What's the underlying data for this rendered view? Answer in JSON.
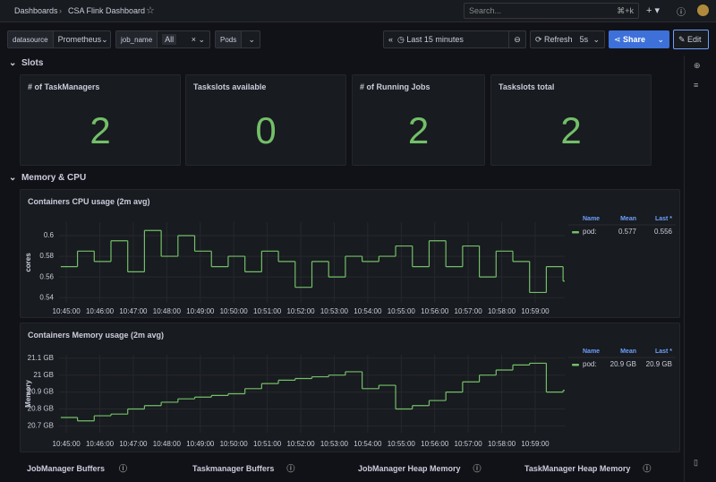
{
  "topbar": {
    "breadcrumbs": [
      "Dashboards",
      "CSA Flink Dashboard"
    ],
    "search": "Search...",
    "shortcut": "⌘+k"
  },
  "variables": [
    {
      "label": "datasource",
      "value": "Prometheus"
    },
    {
      "label": "job_name",
      "value": "All"
    },
    {
      "label": "Pods"
    }
  ],
  "toolbar": {
    "time_range": "Last 15 minutes",
    "refresh": "Refresh",
    "interval": "5s",
    "share": "Share",
    "edit": "Edit"
  },
  "rows": [
    {
      "title": "Slots"
    },
    {
      "title": "Memory & CPU"
    }
  ],
  "stats": [
    {
      "title": "# of TaskManagers",
      "value": 2
    },
    {
      "title": "Taskslots available",
      "value": 0
    },
    {
      "title": "# of Running Jobs",
      "value": 2
    },
    {
      "title": "Taskslots total",
      "value": 2
    }
  ],
  "chart_data": [
    {
      "type": "line",
      "title": "Containers CPU usage (2m avg)",
      "ylabel": "cores",
      "color": "#73bf69",
      "x": [
        "10:44:50",
        "10:45:20",
        "10:45:50",
        "10:46:20",
        "10:46:50",
        "10:47:20",
        "10:47:50",
        "10:48:20",
        "10:48:50",
        "10:49:20",
        "10:49:50",
        "10:50:20",
        "10:50:50",
        "10:51:20",
        "10:51:50",
        "10:52:20",
        "10:52:50",
        "10:53:20",
        "10:53:50",
        "10:54:20",
        "10:54:50",
        "10:55:20",
        "10:55:50",
        "10:56:20",
        "10:56:50",
        "10:57:20",
        "10:57:50",
        "10:58:20",
        "10:58:50",
        "10:59:20",
        "10:59:50"
      ],
      "values": [
        0.57,
        0.585,
        0.575,
        0.595,
        0.565,
        0.605,
        0.58,
        0.6,
        0.585,
        0.57,
        0.58,
        0.565,
        0.585,
        0.575,
        0.55,
        0.575,
        0.56,
        0.58,
        0.575,
        0.58,
        0.59,
        0.57,
        0.595,
        0.57,
        0.59,
        0.56,
        0.585,
        0.575,
        0.545,
        0.57,
        0.556
      ],
      "xlim": [
        "10:44:47",
        "10:59:53"
      ],
      "ylim": [
        0.535,
        0.613
      ],
      "xticks": [
        "10:45:00",
        "10:46:00",
        "10:47:00",
        "10:48:00",
        "10:49:00",
        "10:50:00",
        "10:51:00",
        "10:52:00",
        "10:53:00",
        "10:54:00",
        "10:55:00",
        "10:56:00",
        "10:57:00",
        "10:58:00",
        "10:59:00"
      ],
      "yticks": [
        0.54,
        0.56,
        0.58,
        0.6
      ],
      "legend": {
        "headers": [
          "Name",
          "Mean",
          "Last *"
        ],
        "name": "pod:",
        "mean": "0.577",
        "last": "0.556"
      }
    },
    {
      "type": "line",
      "title": "Containers Memory usage (2m avg)",
      "ylabel": "Memory",
      "color": "#73bf69",
      "x": [
        "10:44:50",
        "10:45:20",
        "10:45:50",
        "10:46:20",
        "10:46:50",
        "10:47:20",
        "10:47:50",
        "10:48:20",
        "10:48:50",
        "10:49:20",
        "10:49:50",
        "10:50:20",
        "10:50:50",
        "10:51:20",
        "10:51:50",
        "10:52:20",
        "10:52:50",
        "10:53:20",
        "10:53:50",
        "10:54:20",
        "10:54:50",
        "10:55:20",
        "10:55:50",
        "10:56:20",
        "10:56:50",
        "10:57:20",
        "10:57:50",
        "10:58:20",
        "10:58:50",
        "10:59:20",
        "10:59:50"
      ],
      "values": [
        20.75,
        20.73,
        20.76,
        20.77,
        20.8,
        20.82,
        20.84,
        20.86,
        20.87,
        20.88,
        20.89,
        20.92,
        20.95,
        20.97,
        20.98,
        20.99,
        21.0,
        21.02,
        20.92,
        20.94,
        20.8,
        20.82,
        20.85,
        20.9,
        20.96,
        21.0,
        21.03,
        21.06,
        21.07,
        20.9,
        20.91
      ],
      "xlim": [
        "10:44:47",
        "10:59:53"
      ],
      "ylim": [
        20.66,
        21.12
      ],
      "xticks": [
        "10:45:00",
        "10:46:00",
        "10:47:00",
        "10:48:00",
        "10:49:00",
        "10:50:00",
        "10:51:00",
        "10:52:00",
        "10:53:00",
        "10:54:00",
        "10:55:00",
        "10:56:00",
        "10:57:00",
        "10:58:00",
        "10:59:00"
      ],
      "yticks": [
        {
          "value": 20.7,
          "label": "20.7 GB"
        },
        {
          "value": 20.8,
          "label": "20.8 GB"
        },
        {
          "value": 20.9,
          "label": "20.9 GB"
        },
        {
          "value": 21,
          "label": "21 GB"
        },
        {
          "value": 21.1,
          "label": "21.1 GB"
        }
      ],
      "legend": {
        "headers": [
          "Name",
          "Mean",
          "Last *"
        ],
        "name": "pod:",
        "mean": "20.9 GB",
        "last": "20.9 GB"
      }
    }
  ],
  "bottom_panels": [
    "JobManager Buffers",
    "Taskmanager Buffers",
    "JobManager Heap Memory",
    "TaskManager Heap Memory"
  ]
}
